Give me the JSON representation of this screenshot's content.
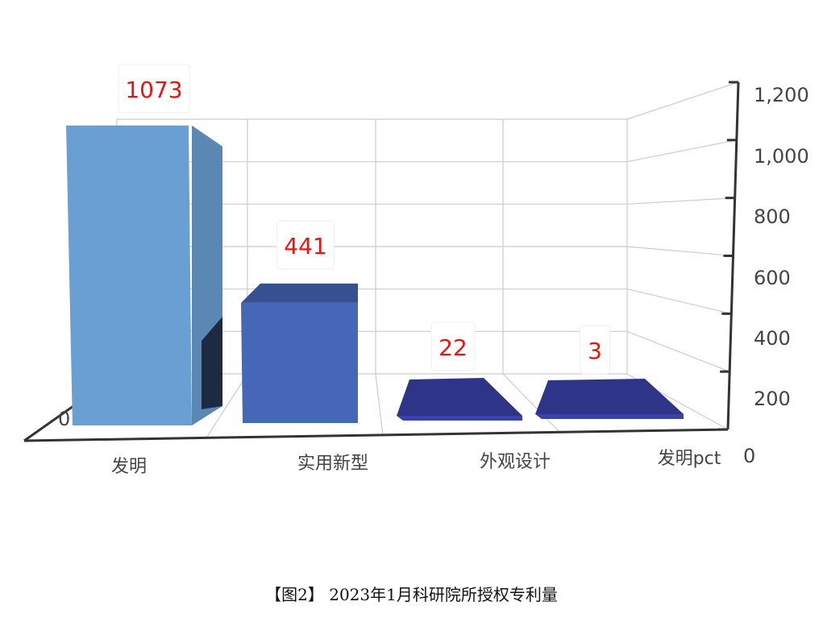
{
  "caption": "【图2】 2023年1月科研院所授权专利量",
  "colors": {
    "bar_invention": "#6a9fd4",
    "bar_utility": "#4667b8",
    "bar_design": "#2e3488",
    "bar_pct": "#2e3488",
    "label_color": "#ee1111",
    "grid": "#cccccc",
    "axis": "#333333"
  },
  "chart_data": {
    "type": "bar",
    "style": "3d",
    "categories": [
      "发明",
      "实用新型",
      "外观设计",
      "发明pct"
    ],
    "values": [
      1073,
      441,
      22,
      3
    ],
    "ylim": [
      0,
      1200
    ],
    "yticks": [
      "1,200",
      "1,000",
      "800",
      "600",
      "400",
      "200",
      "0"
    ],
    "axis_zero_label": "0",
    "grid": true,
    "data_labels": [
      "1073",
      "441",
      "22",
      "3"
    ],
    "title": "",
    "xlabel": "",
    "ylabel": ""
  }
}
